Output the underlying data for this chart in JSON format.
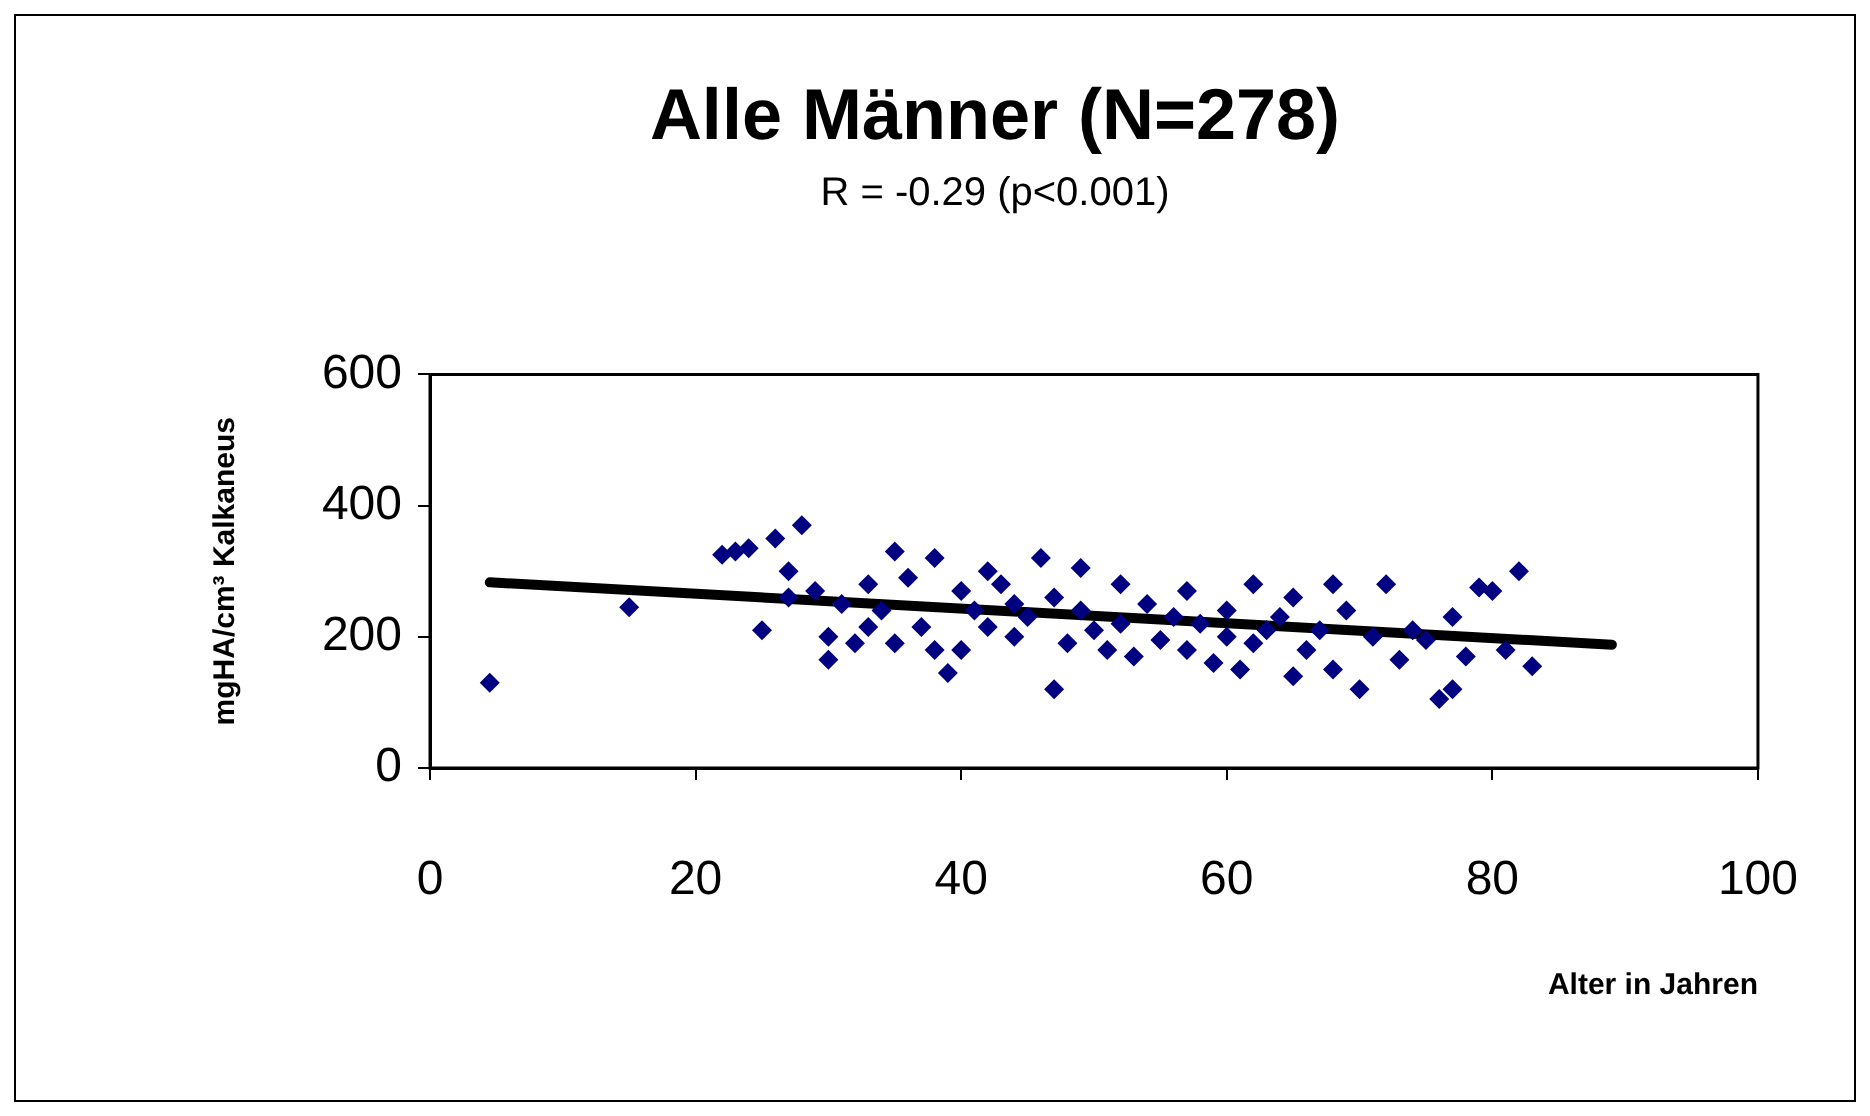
{
  "chart_data": {
    "type": "scatter",
    "title": "Alle Männer (N=278)",
    "subtitle": "R = -0.29 (p<0.001)",
    "xlabel": "Alter in Jahren",
    "ylabel": "mgHA/cm³ Kalkaneus",
    "xlim": [
      0,
      100
    ],
    "xticks": [
      0,
      20,
      40,
      60,
      80,
      100
    ],
    "ylim": [
      0,
      600
    ],
    "yticks": [
      0,
      200,
      400,
      600
    ],
    "grid": false,
    "legend": false,
    "marker": "diamond",
    "series": [
      {
        "type": "scatter",
        "color": "#000080",
        "x": [
          4.5,
          15,
          22,
          23,
          24,
          25,
          26,
          27,
          28,
          27,
          29,
          30,
          30,
          31,
          32,
          33,
          33,
          34,
          35,
          35,
          36,
          37,
          38,
          38,
          39,
          40,
          40,
          41,
          42,
          42,
          43,
          44,
          44,
          45,
          46,
          47,
          47,
          48,
          49,
          49,
          50,
          51,
          52,
          52,
          53,
          54,
          55,
          56,
          57,
          57,
          58,
          59,
          60,
          60,
          61,
          62,
          62,
          63,
          64,
          65,
          65,
          66,
          67,
          68,
          68,
          69,
          70,
          71,
          72,
          73,
          74,
          75,
          76,
          77,
          77,
          78,
          79,
          80,
          81,
          82,
          83
        ],
        "values": [
          130,
          245,
          325,
          330,
          335,
          210,
          350,
          300,
          370,
          260,
          270,
          165,
          200,
          250,
          190,
          280,
          215,
          240,
          330,
          190,
          290,
          215,
          320,
          180,
          145,
          270,
          180,
          240,
          300,
          215,
          280,
          250,
          200,
          230,
          320,
          120,
          260,
          190,
          240,
          305,
          210,
          180,
          280,
          220,
          170,
          250,
          195,
          230,
          270,
          180,
          220,
          160,
          200,
          240,
          150,
          280,
          190,
          210,
          230,
          140,
          260,
          180,
          210,
          280,
          150,
          240,
          120,
          200,
          280,
          165,
          210,
          195,
          105,
          120,
          230,
          170,
          275,
          270,
          180,
          300,
          155
        ]
      },
      {
        "type": "line",
        "color": "#000000",
        "marker": "none",
        "line_style": "solid",
        "x": [
          4.5,
          89
        ],
        "values": [
          283,
          188
        ]
      }
    ]
  }
}
